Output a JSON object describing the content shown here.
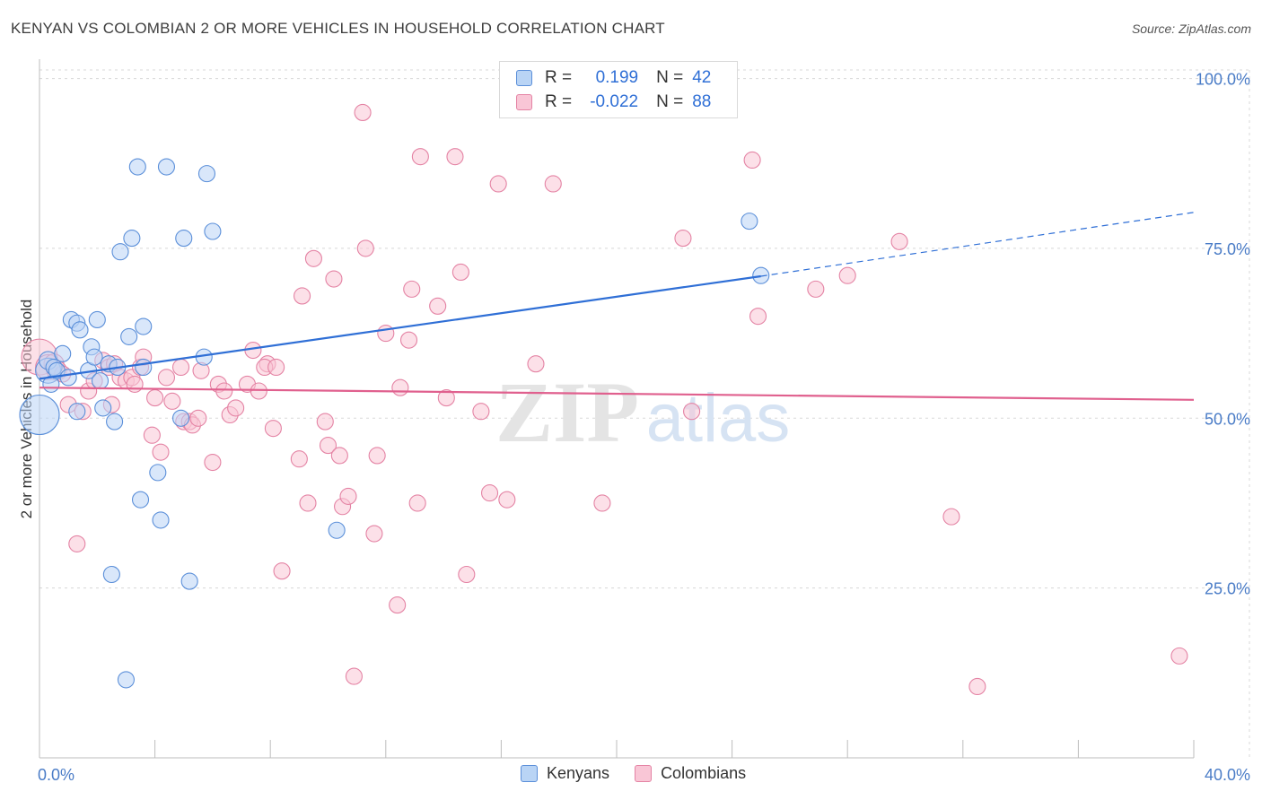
{
  "header": {
    "title": "KENYAN VS COLOMBIAN 2 OR MORE VEHICLES IN HOUSEHOLD CORRELATION CHART",
    "source": "Source: ZipAtlas.com"
  },
  "legend_top": {
    "rows": [
      {
        "r_label": "R =",
        "r_value": "0.199",
        "n_label": "N =",
        "n_value": "42"
      },
      {
        "r_label": "R =",
        "r_value": "-0.022",
        "n_label": "N =",
        "n_value": "88"
      }
    ]
  },
  "watermark": {
    "zip": "ZIP",
    "atlas": "atlas"
  },
  "colors": {
    "kenyan_fill": "#b9d4f5",
    "kenyan_stroke": "#5b8fd9",
    "kenyan_line": "#2f6fd6",
    "colombian_fill": "#f9c6d6",
    "colombian_stroke": "#e483a4",
    "colombian_line": "#e0608e",
    "axis_text": "#4a7cc7",
    "grid": "#d8d8d8"
  },
  "chart_data": {
    "type": "scatter",
    "title": "KENYAN VS COLOMBIAN 2 OR MORE VEHICLES IN HOUSEHOLD CORRELATION CHART",
    "xlabel": "",
    "ylabel": "2 or more Vehicles in Household",
    "xlim": [
      0,
      40
    ],
    "ylim": [
      0,
      101
    ],
    "x_tick_labels": [
      {
        "value": 0,
        "label": "0.0%"
      },
      {
        "value": 40,
        "label": "40.0%"
      }
    ],
    "y_tick_labels": [
      {
        "value": 25,
        "label": "25.0%"
      },
      {
        "value": 50,
        "label": "50.0%"
      },
      {
        "value": 75,
        "label": "75.0%"
      },
      {
        "value": 100,
        "label": "100.0%"
      }
    ],
    "grid": true,
    "legend_position": "bottom-center",
    "series": [
      {
        "name": "Kenyans",
        "r": 0.199,
        "n": 42,
        "trend": {
          "x0": 0,
          "y0": 55.8,
          "x1": 25,
          "y1": 70.9,
          "dash_to_x": 40,
          "dash_to_y": 80.3
        },
        "points": [
          [
            0.0,
            50.5,
            22
          ],
          [
            0.3,
            57.0,
            14
          ],
          [
            0.3,
            58.5,
            10
          ],
          [
            0.4,
            55.0,
            9
          ],
          [
            0.5,
            57.5,
            9
          ],
          [
            0.6,
            57.0,
            9
          ],
          [
            0.8,
            59.5,
            9
          ],
          [
            1.0,
            56.0,
            9
          ],
          [
            1.1,
            64.5,
            9
          ],
          [
            1.3,
            64.0,
            9
          ],
          [
            1.4,
            63.0,
            9
          ],
          [
            1.3,
            51.0,
            9
          ],
          [
            1.7,
            57.0,
            9
          ],
          [
            1.8,
            60.5,
            9
          ],
          [
            1.9,
            59.0,
            9
          ],
          [
            2.0,
            64.5,
            9
          ],
          [
            2.1,
            55.5,
            9
          ],
          [
            2.2,
            51.5,
            9
          ],
          [
            2.4,
            58.0,
            9
          ],
          [
            2.5,
            27.0,
            9
          ],
          [
            2.6,
            49.5,
            9
          ],
          [
            2.7,
            57.5,
            9
          ],
          [
            2.8,
            74.5,
            9
          ],
          [
            3.0,
            11.5,
            9
          ],
          [
            3.1,
            62.0,
            9
          ],
          [
            3.2,
            76.5,
            9
          ],
          [
            3.4,
            87.0,
            9
          ],
          [
            3.5,
            38.0,
            9
          ],
          [
            3.6,
            57.5,
            9
          ],
          [
            3.6,
            63.5,
            9
          ],
          [
            4.1,
            42.0,
            9
          ],
          [
            4.2,
            35.0,
            9
          ],
          [
            4.4,
            87.0,
            9
          ],
          [
            4.9,
            50.0,
            9
          ],
          [
            5.0,
            76.5,
            9
          ],
          [
            5.2,
            26.0,
            9
          ],
          [
            5.7,
            59.0,
            9
          ],
          [
            5.8,
            86.0,
            9
          ],
          [
            6.0,
            77.5,
            9
          ],
          [
            10.3,
            33.5,
            9
          ],
          [
            24.6,
            79.0,
            9
          ],
          [
            25.0,
            71.0,
            9
          ]
        ]
      },
      {
        "name": "Colombians",
        "r": -0.022,
        "n": 88,
        "trend": {
          "x0": 0,
          "y0": 54.5,
          "x1": 40,
          "y1": 52.7
        },
        "points": [
          [
            0.0,
            59.0,
            20
          ],
          [
            0.3,
            57.5,
            14
          ],
          [
            0.5,
            58.0,
            11
          ],
          [
            0.6,
            57.0,
            11
          ],
          [
            0.8,
            56.5,
            9
          ],
          [
            1.0,
            52.0,
            9
          ],
          [
            1.3,
            31.5,
            9
          ],
          [
            1.5,
            51.0,
            9
          ],
          [
            1.7,
            54.0,
            9
          ],
          [
            1.9,
            55.5,
            9
          ],
          [
            2.2,
            58.5,
            9
          ],
          [
            2.4,
            57.5,
            9
          ],
          [
            2.5,
            52.0,
            9
          ],
          [
            2.6,
            58.0,
            9
          ],
          [
            2.8,
            56.0,
            9
          ],
          [
            3.0,
            55.5,
            9
          ],
          [
            3.2,
            56.0,
            9
          ],
          [
            3.3,
            55.0,
            9
          ],
          [
            3.5,
            57.5,
            9
          ],
          [
            3.6,
            59.0,
            9
          ],
          [
            3.9,
            47.5,
            9
          ],
          [
            4.0,
            53.0,
            9
          ],
          [
            4.2,
            45.0,
            9
          ],
          [
            4.4,
            56.0,
            9
          ],
          [
            4.6,
            52.5,
            9
          ],
          [
            4.9,
            57.5,
            9
          ],
          [
            5.0,
            49.5,
            9
          ],
          [
            5.2,
            49.5,
            9
          ],
          [
            5.3,
            49.0,
            9
          ],
          [
            5.5,
            50.0,
            9
          ],
          [
            5.6,
            57.0,
            9
          ],
          [
            6.0,
            43.5,
            9
          ],
          [
            6.2,
            55.0,
            9
          ],
          [
            6.4,
            54.0,
            9
          ],
          [
            6.6,
            50.5,
            9
          ],
          [
            6.8,
            51.5,
            9
          ],
          [
            7.2,
            55.0,
            9
          ],
          [
            7.4,
            60.0,
            9
          ],
          [
            7.6,
            54.0,
            9
          ],
          [
            7.9,
            58.0,
            9
          ],
          [
            7.8,
            57.5,
            9
          ],
          [
            8.2,
            57.5,
            9
          ],
          [
            8.1,
            48.5,
            9
          ],
          [
            8.4,
            27.5,
            9
          ],
          [
            9.0,
            44.0,
            9
          ],
          [
            9.1,
            68.0,
            9
          ],
          [
            9.3,
            37.5,
            9
          ],
          [
            9.5,
            73.5,
            9
          ],
          [
            9.9,
            49.5,
            9
          ],
          [
            10.0,
            46.0,
            9
          ],
          [
            10.2,
            70.5,
            9
          ],
          [
            10.4,
            44.5,
            9
          ],
          [
            10.5,
            37.0,
            9
          ],
          [
            10.7,
            38.5,
            9
          ],
          [
            10.9,
            12.0,
            9
          ],
          [
            11.2,
            95.0,
            9
          ],
          [
            11.3,
            75.0,
            9
          ],
          [
            11.6,
            33.0,
            9
          ],
          [
            11.7,
            44.5,
            9
          ],
          [
            12.0,
            62.5,
            9
          ],
          [
            12.4,
            22.5,
            9
          ],
          [
            12.5,
            54.5,
            9
          ],
          [
            12.8,
            61.5,
            9
          ],
          [
            12.9,
            69.0,
            9
          ],
          [
            13.1,
            37.5,
            9
          ],
          [
            13.2,
            88.5,
            9
          ],
          [
            13.8,
            66.5,
            9
          ],
          [
            14.1,
            53.0,
            9
          ],
          [
            14.4,
            88.5,
            9
          ],
          [
            14.6,
            71.5,
            9
          ],
          [
            14.8,
            27.0,
            9
          ],
          [
            15.3,
            51.0,
            9
          ],
          [
            15.6,
            39.0,
            9
          ],
          [
            15.9,
            84.5,
            9
          ],
          [
            16.2,
            38.0,
            9
          ],
          [
            17.2,
            58.0,
            9
          ],
          [
            17.8,
            84.5,
            9
          ],
          [
            19.5,
            37.5,
            9
          ],
          [
            22.3,
            76.5,
            9
          ],
          [
            22.6,
            51.0,
            9
          ],
          [
            24.7,
            88.0,
            9
          ],
          [
            24.9,
            65.0,
            9
          ],
          [
            26.9,
            69.0,
            9
          ],
          [
            28.0,
            71.0,
            9
          ],
          [
            29.8,
            76.0,
            9
          ],
          [
            31.6,
            35.5,
            9
          ],
          [
            32.5,
            10.5,
            9
          ],
          [
            39.5,
            15.0,
            9
          ]
        ]
      }
    ]
  },
  "legend_bottom": {
    "items": [
      {
        "label": "Kenyans"
      },
      {
        "label": "Colombians"
      }
    ]
  }
}
